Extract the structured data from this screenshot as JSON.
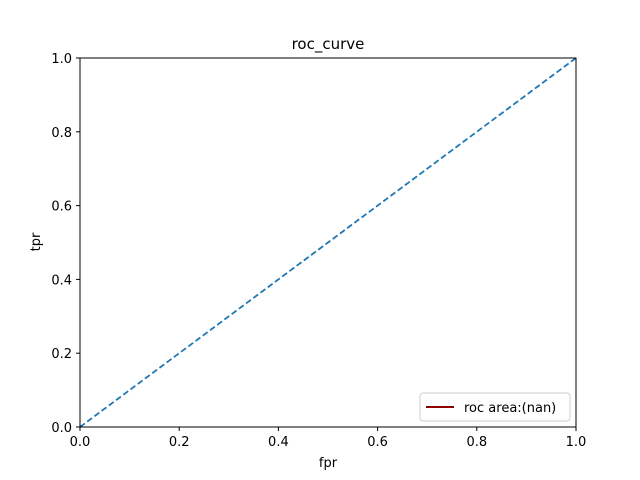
{
  "chart_data": {
    "type": "line",
    "title": "roc_curve",
    "xlabel": "fpr",
    "ylabel": "tpr",
    "xlim": [
      0,
      1
    ],
    "ylim": [
      0,
      1
    ],
    "x_ticks": [
      0.0,
      0.2,
      0.4,
      0.6,
      0.8,
      1.0
    ],
    "y_ticks": [
      0.0,
      0.2,
      0.4,
      0.6,
      0.8,
      1.0
    ],
    "x_tick_labels": [
      "0.0",
      "0.2",
      "0.4",
      "0.6",
      "0.8",
      "1.0"
    ],
    "y_tick_labels": [
      "0.0",
      "0.2",
      "0.4",
      "0.6",
      "0.8",
      "1.0"
    ],
    "grid": false,
    "legend_position": "lower-right",
    "series": [
      {
        "name": "roc area:(nan)",
        "color": "#8b0000",
        "style": "solid",
        "x": [],
        "y": []
      },
      {
        "color": "#1f77b4",
        "style": "dashed",
        "x": [
          0,
          1
        ],
        "y": [
          0,
          1
        ]
      }
    ]
  }
}
